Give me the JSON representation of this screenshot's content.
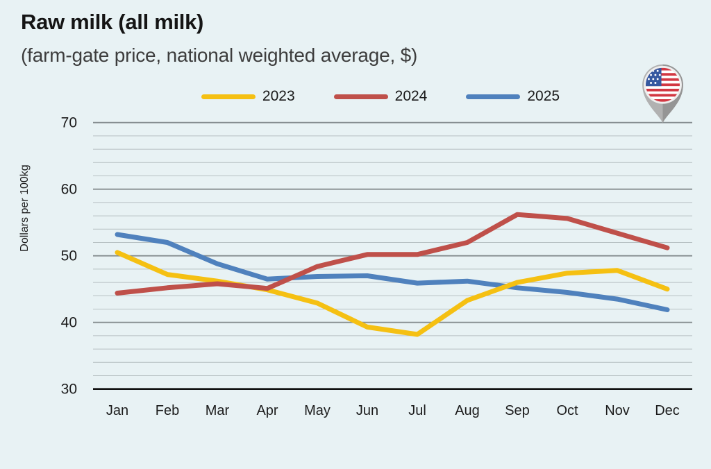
{
  "header": {
    "title": "Raw milk (all milk)",
    "subtitle": "(farm-gate price, national weighted average, $)"
  },
  "flag": {
    "country": "United States"
  },
  "colors": {
    "background": "#e8f2f4",
    "series_2023": "#f5c012",
    "series_2024": "#bf504a",
    "series_2025": "#4f81bd",
    "major_gridline": "#858d8f",
    "minor_gridline": "#b6c0c2",
    "axis_line": "#111111"
  },
  "chart_data": {
    "type": "line",
    "title": "Raw milk (all milk)",
    "subtitle": "(farm-gate price, national weighted average, $)",
    "ylabel": "Dollars per 100kg",
    "xlabel": "",
    "categories": [
      "Jan",
      "Feb",
      "Mar",
      "Apr",
      "May",
      "Jun",
      "Jul",
      "Aug",
      "Sep",
      "Oct",
      "Nov",
      "Dec"
    ],
    "ylim": [
      30,
      70
    ],
    "ytick_major": [
      30,
      40,
      50,
      60,
      70
    ],
    "ytick_minor_step": 2,
    "grid": true,
    "legend_position": "top-center",
    "draw_order": [
      2,
      0,
      1
    ],
    "series": [
      {
        "name": "2023",
        "color": "#f5c012",
        "values": [
          50.5,
          47.2,
          46.2,
          44.9,
          42.9,
          39.3,
          38.2,
          43.3,
          46.0,
          47.4,
          47.8,
          45.0
        ]
      },
      {
        "name": "2024",
        "color": "#bf504a",
        "values": [
          44.4,
          45.2,
          45.8,
          45.1,
          48.4,
          50.2,
          50.2,
          52.0,
          56.2,
          55.6,
          53.4,
          51.2
        ]
      },
      {
        "name": "2025",
        "color": "#4f81bd",
        "values": [
          53.2,
          52.0,
          48.8,
          46.5,
          46.9,
          47.0,
          45.9,
          46.2,
          45.2,
          44.5,
          43.5,
          41.9
        ]
      }
    ]
  }
}
